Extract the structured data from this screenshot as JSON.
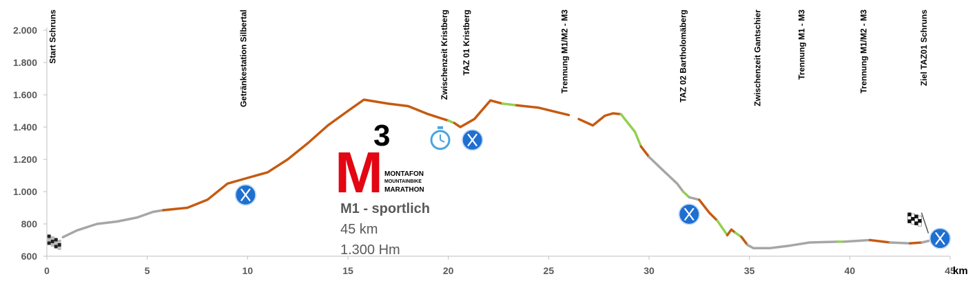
{
  "chart_data": {
    "type": "line",
    "xlabel": "",
    "ylabel": "",
    "x_unit": "km",
    "xlim": [
      0,
      45
    ],
    "ylim": [
      600,
      2000
    ],
    "x_ticks": [
      "0",
      "5",
      "10",
      "15",
      "20",
      "25",
      "30",
      "35",
      "40",
      "45"
    ],
    "y_ticks": [
      "600",
      "800",
      "1.000",
      "1.200",
      "1.400",
      "1.600",
      "1.800",
      "2.000"
    ],
    "surface_colors": {
      "asphalt": "#a6a6a6",
      "gravel": "#c55a11",
      "trail": "#92d050"
    },
    "segments": [
      {
        "surface": "asphalt",
        "points": [
          [
            0.8,
            718
          ],
          [
            1.5,
            760
          ],
          [
            2.5,
            800
          ],
          [
            3.5,
            815
          ],
          [
            4.5,
            840
          ],
          [
            5.3,
            875
          ],
          [
            5.8,
            885
          ]
        ]
      },
      {
        "surface": "gravel",
        "points": [
          [
            5.8,
            885
          ],
          [
            7,
            900
          ],
          [
            8,
            950
          ],
          [
            9,
            1050
          ],
          [
            10,
            1085
          ],
          [
            11,
            1120
          ],
          [
            12,
            1200
          ],
          [
            13,
            1300
          ],
          [
            14,
            1410
          ],
          [
            15,
            1500
          ],
          [
            15.8,
            1570
          ],
          [
            17,
            1545
          ],
          [
            18,
            1530
          ],
          [
            19,
            1480
          ],
          [
            20,
            1440
          ]
        ]
      },
      {
        "surface": "trail",
        "points": [
          [
            20,
            1440
          ],
          [
            20.3,
            1425
          ]
        ]
      },
      {
        "surface": "gravel",
        "points": [
          [
            20.3,
            1425
          ],
          [
            20.6,
            1400
          ],
          [
            21.3,
            1450
          ],
          [
            22.1,
            1565
          ],
          [
            22.7,
            1545
          ]
        ]
      },
      {
        "surface": "trail",
        "points": [
          [
            22.7,
            1545
          ],
          [
            23.4,
            1535
          ]
        ]
      },
      {
        "surface": "gravel",
        "points": [
          [
            23.4,
            1535
          ],
          [
            24.5,
            1520
          ],
          [
            25.5,
            1490
          ],
          [
            26,
            1475
          ]
        ]
      },
      {
        "surface": "gravel",
        "points": [
          [
            26.5,
            1450
          ],
          [
            27.2,
            1410
          ],
          [
            27.8,
            1470
          ],
          [
            28.2,
            1485
          ],
          [
            28.6,
            1480
          ]
        ]
      },
      {
        "surface": "trail",
        "points": [
          [
            28.6,
            1480
          ],
          [
            29.3,
            1370
          ],
          [
            29.6,
            1280
          ]
        ]
      },
      {
        "surface": "gravel",
        "points": [
          [
            29.6,
            1280
          ],
          [
            30,
            1215
          ]
        ]
      },
      {
        "surface": "asphalt",
        "points": [
          [
            30,
            1215
          ],
          [
            30.8,
            1120
          ],
          [
            31.4,
            1050
          ],
          [
            31.7,
            1000
          ]
        ]
      },
      {
        "surface": "trail",
        "points": [
          [
            31.7,
            1000
          ],
          [
            32,
            965
          ]
        ]
      },
      {
        "surface": "asphalt",
        "points": [
          [
            32,
            965
          ],
          [
            32.5,
            950
          ]
        ]
      },
      {
        "surface": "gravel",
        "points": [
          [
            32.5,
            950
          ],
          [
            33,
            870
          ],
          [
            33.4,
            820
          ]
        ]
      },
      {
        "surface": "trail",
        "points": [
          [
            33.4,
            820
          ],
          [
            33.9,
            730
          ]
        ]
      },
      {
        "surface": "gravel",
        "points": [
          [
            33.9,
            730
          ],
          [
            34.1,
            765
          ],
          [
            34.3,
            745
          ]
        ]
      },
      {
        "surface": "trail",
        "points": [
          [
            34.3,
            745
          ],
          [
            34.6,
            720
          ]
        ]
      },
      {
        "surface": "gravel",
        "points": [
          [
            34.6,
            720
          ],
          [
            34.9,
            670
          ]
        ]
      },
      {
        "surface": "asphalt",
        "points": [
          [
            34.9,
            670
          ],
          [
            35.2,
            650
          ],
          [
            36,
            650
          ],
          [
            37,
            665
          ],
          [
            38,
            685
          ],
          [
            39.4,
            690
          ]
        ]
      },
      {
        "surface": "trail",
        "points": [
          [
            39.4,
            690
          ],
          [
            39.7,
            690
          ]
        ]
      },
      {
        "surface": "asphalt",
        "points": [
          [
            39.7,
            690
          ],
          [
            41,
            700
          ]
        ]
      },
      {
        "surface": "gravel",
        "points": [
          [
            41,
            700
          ],
          [
            42,
            685
          ]
        ]
      },
      {
        "surface": "asphalt",
        "points": [
          [
            42,
            685
          ],
          [
            43,
            680
          ]
        ]
      },
      {
        "surface": "gravel",
        "points": [
          [
            43,
            680
          ],
          [
            43.6,
            685
          ]
        ]
      },
      {
        "surface": "asphalt",
        "points": [
          [
            43.6,
            685
          ],
          [
            44.1,
            700
          ]
        ]
      }
    ],
    "annotations": [
      {
        "km": 0.3,
        "label": "Start Schruns"
      },
      {
        "km": 9.8,
        "label": "Getränkestation Silbertal"
      },
      {
        "km": 19.8,
        "label": "Zwischenzeit Kristberg"
      },
      {
        "km": 20.9,
        "label": "TAZ 01 Kristberg"
      },
      {
        "km": 25.8,
        "label": "Trennung M1/M2 - M3"
      },
      {
        "km": 31.7,
        "label": "TAZ 02 Bartholomäberg"
      },
      {
        "km": 35.4,
        "label": "Zwischenzeit Gantschier"
      },
      {
        "km": 37.6,
        "label": "Trennung M1 - M3"
      },
      {
        "km": 40.7,
        "label": "Trennung M1/M2 - M3"
      },
      {
        "km": 43.7,
        "label": "Ziel TAZ01 Schruns"
      }
    ],
    "markers": [
      {
        "type": "aid-station-icon",
        "km": 9.9,
        "alt": 980
      },
      {
        "type": "stopwatch-icon",
        "km": 19.6,
        "alt": 1320
      },
      {
        "type": "aid-station-icon",
        "km": 21.2,
        "alt": 1320
      },
      {
        "type": "aid-station-icon",
        "km": 32.0,
        "alt": 860
      },
      {
        "type": "aid-station-icon",
        "km": 44.5,
        "alt": 710
      },
      {
        "type": "start-flag-icon",
        "km": 0.3,
        "alt": 700
      },
      {
        "type": "finish-flag-icon",
        "km": 43.3,
        "alt": 810
      }
    ]
  },
  "logo": {
    "big": "M",
    "sup": "3",
    "lines": [
      "MONTAFON",
      "MOUNTAINBIKE",
      "MARATHON"
    ],
    "accent": "#e30613"
  },
  "info": {
    "title": "M1 - sportlich",
    "distance": "45 km",
    "elevation": "1.300 Hm"
  }
}
